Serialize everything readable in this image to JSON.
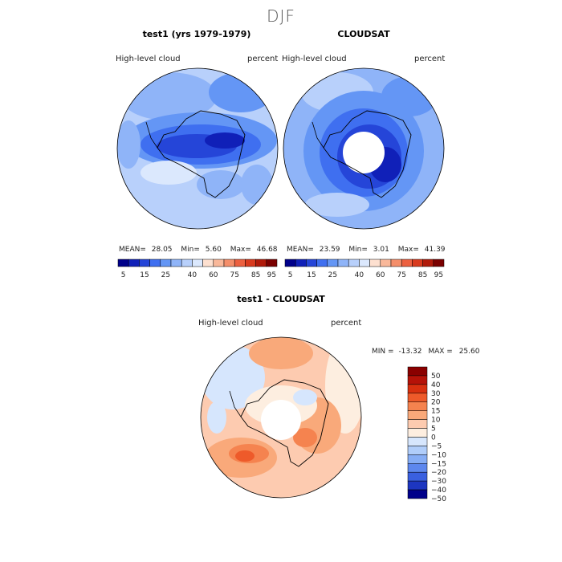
{
  "figure": {
    "season": "DJF"
  },
  "panels": [
    {
      "title": "test1 (yrs 1979-1979)",
      "variable": "High-level cloud",
      "units": "percent",
      "stats": {
        "mean_label": "MEAN=",
        "mean": "28.05",
        "min_label": "Min=",
        "min": "5.60",
        "max_label": "Max=",
        "max": "46.68"
      },
      "colorbar": {
        "labels": [
          "5",
          "15",
          "25",
          "40",
          "60",
          "75",
          "85",
          "95"
        ]
      }
    },
    {
      "title": "CLOUDSAT",
      "variable": "High-level cloud",
      "units": "percent",
      "stats": {
        "mean_label": "MEAN=",
        "mean": "23.59",
        "min_label": "Min=",
        "min": "3.01",
        "max_label": "Max=",
        "max": "41.39"
      },
      "colorbar": {
        "labels": [
          "5",
          "15",
          "25",
          "40",
          "60",
          "75",
          "85",
          "95"
        ]
      }
    }
  ],
  "difference": {
    "title": "test1 - CLOUDSAT",
    "variable": "High-level cloud",
    "units": "percent",
    "stats": {
      "min_label": "MIN =",
      "min": "-13.32",
      "max_label": "MAX =",
      "max": "25.60"
    },
    "colorbar": {
      "labels": [
        "50",
        "40",
        "30",
        "20",
        "15",
        "10",
        "5",
        "0",
        "−5",
        "−10",
        "−15",
        "−20",
        "−30",
        "−40",
        "−50"
      ]
    }
  },
  "colors": {
    "abs_palette": [
      "#00008a",
      "#1020b8",
      "#2545d8",
      "#3f6ff0",
      "#6496f5",
      "#8fb4f8",
      "#b8d0fb",
      "#dbe8fd",
      "#fde0d0",
      "#f9b89a",
      "#f48e6a",
      "#ec6040",
      "#d83a1e",
      "#b01a0a",
      "#7a0000"
    ],
    "diff_palette": [
      "#8a0000",
      "#b51208",
      "#d8300f",
      "#ee5a2a",
      "#f5834f",
      "#f9a97a",
      "#fdcbb0",
      "#fdeee0",
      "#d6e6fd",
      "#b0cdfa",
      "#86adf5",
      "#5d87ee",
      "#3a60e0",
      "#1d36c0",
      "#00008a"
    ]
  }
}
